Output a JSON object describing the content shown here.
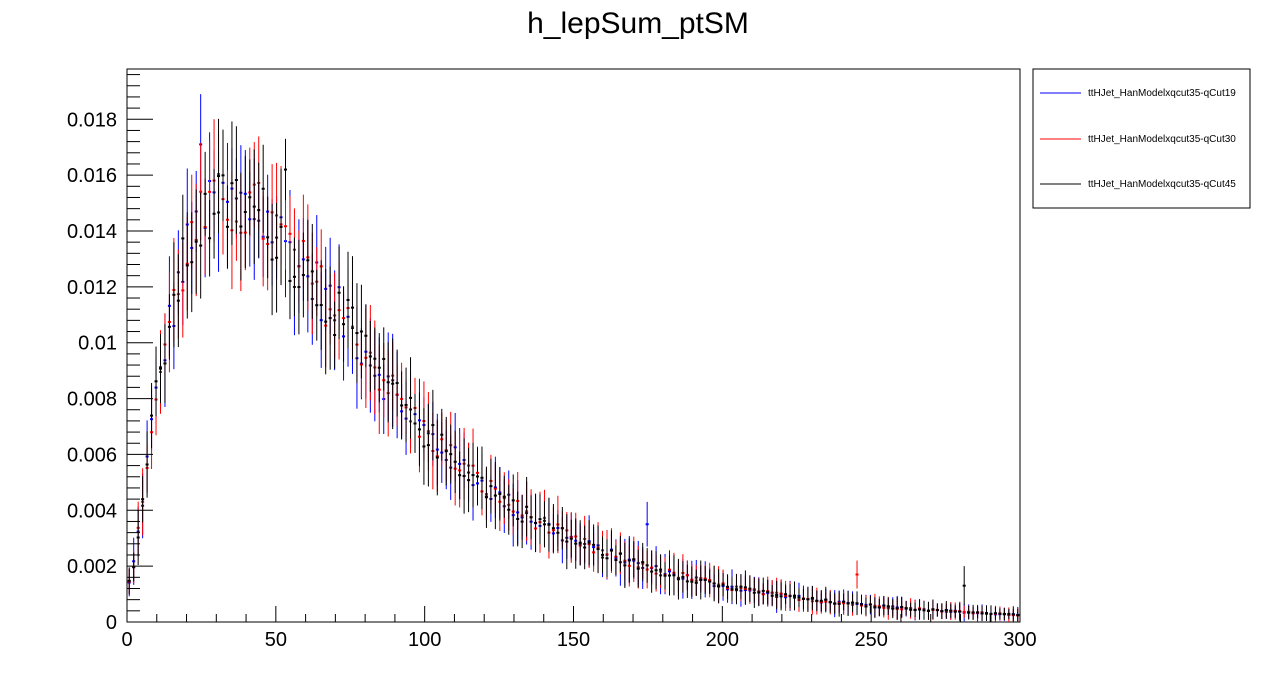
{
  "chart_data": {
    "type": "scatter",
    "title": "h_lepSum_ptSM",
    "xlabel": "",
    "ylabel": "",
    "xlim": [
      0,
      300
    ],
    "ylim": [
      0,
      0.0198
    ],
    "bin_width": 1.5,
    "x_ticks": [
      "0",
      "50",
      "100",
      "150",
      "200",
      "250",
      "300"
    ],
    "y_ticks": [
      "0",
      "0.002",
      "0.004",
      "0.006",
      "0.008",
      "0.01",
      "0.012",
      "0.014",
      "0.016",
      "0.018"
    ],
    "grid": false,
    "legend_position": "top-right, outside plot",
    "series": [
      {
        "name": "ttHJet_HanModelxqcut35-qCut19",
        "color": "#0000ff"
      },
      {
        "name": "ttHJet_HanModelxqcut35-qCut30",
        "color": "#ff0000"
      },
      {
        "name": "ttHJet_HanModelxqcut35-qCut45",
        "color": "#000000"
      }
    ],
    "curve_points": {
      "x": [
        0,
        1,
        3,
        5,
        8,
        12,
        16,
        20,
        25,
        30,
        35,
        40,
        45,
        50,
        55,
        60,
        70,
        80,
        90,
        100,
        110,
        120,
        130,
        140,
        150,
        160,
        170,
        180,
        190,
        200,
        210,
        220,
        230,
        240,
        250,
        260,
        270,
        280,
        290,
        300
      ],
      "y": [
        0.001,
        0.0015,
        0.0025,
        0.0042,
        0.0068,
        0.0095,
        0.0115,
        0.0132,
        0.0143,
        0.0148,
        0.015,
        0.0148,
        0.0145,
        0.014,
        0.0133,
        0.0125,
        0.0112,
        0.0098,
        0.0081,
        0.0068,
        0.0058,
        0.0049,
        0.0041,
        0.0035,
        0.0029,
        0.0025,
        0.0021,
        0.0018,
        0.00155,
        0.0013,
        0.0011,
        0.00095,
        0.0008,
        0.00068,
        0.00058,
        0.0005,
        0.00043,
        0.00037,
        0.00031,
        0.00025
      ]
    },
    "error_fraction_at_peak": 0.12,
    "spread_fraction": 0.04,
    "outliers": [
      {
        "series": 0,
        "x": 24.75,
        "y": 0.0171,
        "err": 0.0018
      },
      {
        "series": 2,
        "x": 53.25,
        "y": 0.0162,
        "err": 0.0011
      },
      {
        "series": 0,
        "x": 174.75,
        "y": 0.0035,
        "err": 0.0008
      },
      {
        "series": 1,
        "x": 245.25,
        "y": 0.0017,
        "err": 0.0005
      },
      {
        "series": 2,
        "x": 281.25,
        "y": 0.0013,
        "err": 0.0007
      }
    ]
  }
}
